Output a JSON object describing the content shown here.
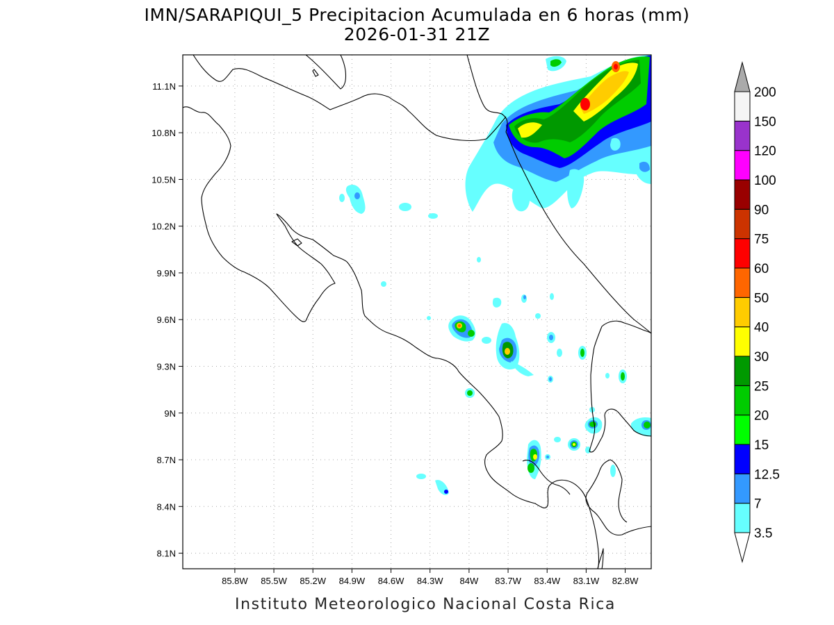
{
  "title": {
    "line1": "IMN/SARAPIQUI_5 Precipitacion Acumulada en 6 horas (mm)",
    "line2": "2026-01-31 21Z"
  },
  "footer": "Instituto Meteorologico Nacional Costa Rica",
  "map": {
    "lon_range": [
      -86.2,
      -82.6
    ],
    "lat_range": [
      8.0,
      11.3
    ],
    "lon_ticks": [
      "85.8W",
      "85.5W",
      "85.2W",
      "84.9W",
      "84.6W",
      "84.3W",
      "84W",
      "83.7W",
      "83.4W",
      "83.1W",
      "82.8W"
    ],
    "lat_ticks": [
      "8.1N",
      "8.4N",
      "8.7N",
      "9N",
      "9.3N",
      "9.6N",
      "9.9N",
      "10.2N",
      "10.5N",
      "10.8N",
      "11.1N"
    ]
  },
  "colorbar": {
    "levels": [
      "3.5",
      "7",
      "12.5",
      "15",
      "20",
      "25",
      "30",
      "40",
      "50",
      "60",
      "75",
      "90",
      "100",
      "120",
      "150",
      "200"
    ],
    "colors": [
      "#66ffff",
      "#3399ff",
      "#0000ff",
      "#00ff00",
      "#00cc00",
      "#009900",
      "#ffff00",
      "#ffcc00",
      "#ff6600",
      "#ff0000",
      "#cc3300",
      "#990000",
      "#ff00ff",
      "#9933cc",
      "#f5f5f5",
      "#aaaaaa"
    ]
  }
}
